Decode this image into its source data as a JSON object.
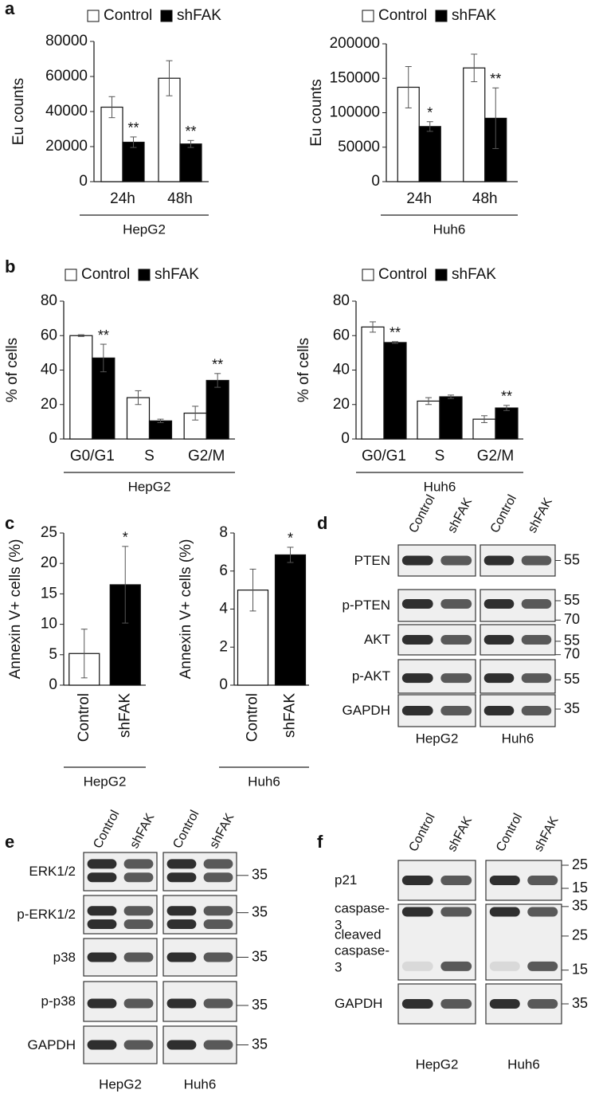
{
  "panel_labels": [
    "a",
    "b",
    "c",
    "d",
    "e",
    "f"
  ],
  "chart_data": [
    {
      "type": "bar",
      "ylabel": "Eu counts",
      "ylim": [
        0,
        80000
      ],
      "yticks": [
        0,
        20000,
        40000,
        60000,
        80000
      ],
      "categories": [
        "24h",
        "48h"
      ],
      "group_label": "HepG2",
      "series": [
        {
          "name": "Control",
          "color": "#ffffff",
          "values": [
            42500,
            59000
          ],
          "errors": [
            6000,
            10000
          ],
          "annotations": [
            null,
            null
          ]
        },
        {
          "name": "shFAK",
          "color": "#000000",
          "values": [
            22500,
            21500
          ],
          "errors": [
            3000,
            2000
          ],
          "annotations": [
            "**",
            "**"
          ]
        }
      ]
    },
    {
      "type": "bar",
      "ylabel": "Eu counts",
      "ylim": [
        0,
        200000
      ],
      "yticks": [
        0,
        50000,
        100000,
        150000,
        200000
      ],
      "categories": [
        "24h",
        "48h"
      ],
      "group_label": "Huh6",
      "series": [
        {
          "name": "Control",
          "color": "#ffffff",
          "values": [
            137000,
            165000
          ],
          "errors": [
            30000,
            20000
          ],
          "annotations": [
            null,
            null
          ]
        },
        {
          "name": "shFAK",
          "color": "#000000",
          "values": [
            80000,
            92000
          ],
          "errors": [
            7000,
            44000
          ],
          "annotations": [
            "*",
            "**"
          ]
        }
      ]
    },
    {
      "type": "bar",
      "ylabel": "% of cells",
      "ylim": [
        0,
        80
      ],
      "yticks": [
        0,
        20,
        40,
        60,
        80
      ],
      "categories": [
        "G0/G1",
        "S",
        "G2/M"
      ],
      "group_label": "HepG2",
      "series": [
        {
          "name": "Control",
          "color": "#ffffff",
          "values": [
            60,
            24,
            15
          ],
          "errors": [
            0.5,
            4,
            4
          ],
          "annotations": [
            null,
            null,
            null
          ]
        },
        {
          "name": "shFAK",
          "color": "#000000",
          "values": [
            47,
            10.5,
            34
          ],
          "errors": [
            8,
            1,
            4
          ],
          "annotations": [
            "**",
            null,
            "**"
          ]
        }
      ]
    },
    {
      "type": "bar",
      "ylabel": "% of cells",
      "ylim": [
        0,
        80
      ],
      "yticks": [
        0,
        20,
        40,
        60,
        80
      ],
      "categories": [
        "G0/G1",
        "S",
        "G2/M"
      ],
      "group_label": "Huh6",
      "series": [
        {
          "name": "Control",
          "color": "#ffffff",
          "values": [
            65,
            22,
            11.5
          ],
          "errors": [
            3,
            2,
            2
          ],
          "annotations": [
            null,
            null,
            null
          ]
        },
        {
          "name": "shFAK",
          "color": "#000000",
          "values": [
            56,
            24.5,
            18
          ],
          "errors": [
            0.5,
            1,
            1.5
          ],
          "annotations": [
            "**",
            null,
            "**"
          ]
        }
      ]
    },
    {
      "type": "bar",
      "ylabel": "Annexin V+ cells (%)",
      "ylim": [
        0,
        25
      ],
      "yticks": [
        0,
        5,
        10,
        15,
        20,
        25
      ],
      "categories": [
        "Control",
        "shFAK"
      ],
      "group_label": "HepG2",
      "colors": [
        "#ffffff",
        "#000000"
      ],
      "values": [
        5.2,
        16.5
      ],
      "errors": [
        4,
        6.3
      ],
      "annotations": [
        null,
        "*"
      ]
    },
    {
      "type": "bar",
      "ylabel": "Annexin V+ cells (%)",
      "ylim": [
        0,
        8
      ],
      "yticks": [
        0,
        2,
        4,
        6,
        8
      ],
      "categories": [
        "Control",
        "shFAK"
      ],
      "group_label": "Huh6",
      "colors": [
        "#ffffff",
        "#000000"
      ],
      "values": [
        5,
        6.85
      ],
      "errors": [
        1.1,
        0.4
      ],
      "annotations": [
        null,
        "*"
      ]
    }
  ],
  "blots": [
    {
      "groups": [
        {
          "name": "HepG2",
          "lanes": [
            "Control",
            "shFAK"
          ]
        },
        {
          "name": "Huh6",
          "lanes": [
            "Control",
            "shFAK"
          ]
        }
      ],
      "rows": [
        {
          "labels": [
            "PTEN"
          ],
          "markers": [
            55
          ]
        },
        {
          "labels": [
            "p-PTEN"
          ],
          "markers": [
            55
          ]
        },
        {
          "labels": [
            "AKT"
          ],
          "markers": [
            70,
            55
          ]
        },
        {
          "labels": [
            "p-AKT"
          ],
          "markers": [
            70,
            55
          ]
        },
        {
          "labels": [
            "GAPDH"
          ],
          "markers": [
            35
          ]
        }
      ]
    },
    {
      "groups": [
        {
          "name": "HepG2",
          "lanes": [
            "Control",
            "shFAK"
          ]
        },
        {
          "name": "Huh6",
          "lanes": [
            "Control",
            "shFAK"
          ]
        }
      ],
      "rows": [
        {
          "labels": [
            "ERK1/2"
          ],
          "markers": [
            35
          ]
        },
        {
          "labels": [
            "p-ERK1/2"
          ],
          "markers": [
            35
          ]
        },
        {
          "labels": [
            "p38"
          ],
          "markers": [
            35
          ]
        },
        {
          "labels": [
            "p-p38"
          ],
          "markers": [
            35
          ]
        },
        {
          "labels": [
            "GAPDH"
          ],
          "markers": [
            35
          ]
        }
      ]
    },
    {
      "groups": [
        {
          "name": "HepG2",
          "lanes": [
            "Control",
            "shFAK"
          ]
        },
        {
          "name": "Huh6",
          "lanes": [
            "Control",
            "shFAK"
          ]
        }
      ],
      "rows": [
        {
          "labels": [
            "p21"
          ],
          "markers": [
            25,
            15
          ]
        },
        {
          "labels": [
            "caspase-3",
            "cleaved caspase-3"
          ],
          "markers": [
            35,
            25,
            15
          ]
        },
        {
          "labels": [
            "GAPDH"
          ],
          "markers": [
            35
          ]
        }
      ]
    }
  ]
}
